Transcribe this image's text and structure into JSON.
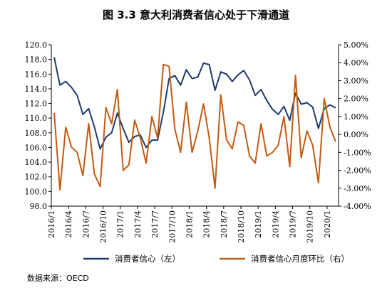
{
  "title": "图 3.3  意大利消费者信心处于下滑通道",
  "source": "数据来源：OECD",
  "chart_data": {
    "type": "line",
    "title": "图 3.3  意大利消费者信心处于下滑通道",
    "x": [
      "2016/1",
      "2016/2",
      "2016/3",
      "2016/4",
      "2016/5",
      "2016/6",
      "2016/7",
      "2016/8",
      "2016/9",
      "2016/10",
      "2016/11",
      "2016/12",
      "2017/1",
      "2017/2",
      "2017/3",
      "2017/4",
      "2017/5",
      "2017/6",
      "2017/7",
      "2017/8",
      "2017/9",
      "2017/10",
      "2017/11",
      "2017/12",
      "2018/1",
      "2018/2",
      "2018/3",
      "2018/4",
      "2018/5",
      "2018/6",
      "2018/7",
      "2018/8",
      "2018/9",
      "2018/10",
      "2018/11",
      "2018/12",
      "2019/1",
      "2019/2",
      "2019/3",
      "2019/4",
      "2019/5",
      "2019/6",
      "2019/7",
      "2019/8",
      "2019/9",
      "2019/10",
      "2019/11",
      "2019/12",
      "2020/1",
      "2020/2"
    ],
    "x_tick_labels": [
      "2016/1",
      "2016/4",
      "2016/7",
      "2016/10",
      "2017/1",
      "2017/4",
      "2017/7",
      "2017/10",
      "2018/1",
      "2018/4",
      "2018/7",
      "2018/10",
      "2019/1",
      "2019/4",
      "2019/7",
      "2019/10",
      "2020/1"
    ],
    "y_left": {
      "min": 98,
      "max": 120,
      "step": 2,
      "tick_labels": [
        "98.0",
        "100.0",
        "102.0",
        "104.0",
        "106.0",
        "108.0",
        "110.0",
        "112.0",
        "114.0",
        "116.0",
        "118.0",
        "120.0"
      ]
    },
    "y_right": {
      "min": -4,
      "max": 5,
      "step": 1,
      "tick_labels": [
        "-4.00%",
        "-3.00%",
        "-2.00%",
        "-1.00%",
        "0.00%",
        "1.00%",
        "2.00%",
        "3.00%",
        "4.00%",
        "5.00%"
      ]
    },
    "series": [
      {
        "name": "消费者信心（左）",
        "axis": "left",
        "color": "#1f3a6e",
        "values": [
          118.3,
          114.5,
          115.0,
          114.2,
          113.1,
          110.5,
          111.3,
          108.8,
          105.8,
          107.4,
          108.0,
          110.7,
          108.6,
          106.7,
          107.5,
          107.7,
          106.0,
          107.0,
          107.0,
          110.8,
          115.4,
          115.8,
          114.5,
          116.6,
          115.4,
          115.6,
          117.5,
          117.3,
          113.8,
          116.3,
          116.0,
          115.0,
          115.9,
          116.5,
          115.2,
          113.1,
          113.9,
          112.4,
          111.2,
          110.5,
          111.6,
          109.7,
          113.4,
          111.9,
          112.1,
          111.5,
          108.6,
          111.3,
          111.8,
          111.4
        ]
      },
      {
        "name": "消费者信心月度环比（右）",
        "axis": "right",
        "color": "#c55a11",
        "values": [
          1.2,
          -3.1,
          0.4,
          -0.7,
          -1.0,
          -2.3,
          0.6,
          -2.2,
          -2.9,
          1.5,
          0.6,
          2.5,
          -2.0,
          -1.7,
          0.8,
          -0.2,
          -1.6,
          1.0,
          -0.2,
          3.9,
          3.8,
          0.3,
          -1.0,
          1.8,
          -1.0,
          0.2,
          1.7,
          -0.2,
          -3.0,
          2.2,
          -0.3,
          -0.8,
          0.7,
          0.5,
          -1.2,
          -1.6,
          0.6,
          -1.2,
          -1.0,
          -0.6,
          1.0,
          -1.8,
          3.3,
          -1.3,
          0.2,
          -0.6,
          -2.7,
          2.0,
          0.4,
          -0.4
        ]
      }
    ],
    "legend": {
      "position": "bottom",
      "labels": [
        "消费者信心（左）",
        "消费者信心月度环比（右）"
      ]
    },
    "grid": false
  }
}
